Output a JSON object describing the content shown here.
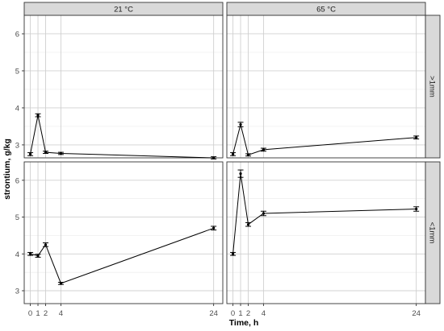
{
  "chart_data": {
    "type": "line",
    "xlabel": "Time, h",
    "ylabel": "strontium, g/kg",
    "x_ticks": [
      0,
      1,
      2,
      4,
      24
    ],
    "x_ticks_labeled": [
      0,
      1,
      2,
      4,
      24
    ],
    "y_ticks": [
      3,
      4,
      5,
      6
    ],
    "xlim": [
      -0.8,
      25.2
    ],
    "ylim": [
      2.65,
      6.5
    ],
    "grid": true,
    "columns": [
      "21 °C",
      "65 °C"
    ],
    "rows": [
      ">1mm",
      "<1mm"
    ],
    "panels": [
      {
        "column": "21 °C",
        "row": ">1mm",
        "points": [
          {
            "x": 0,
            "y": 2.75,
            "err": 0.04
          },
          {
            "x": 1,
            "y": 3.8,
            "err": 0.04
          },
          {
            "x": 2,
            "y": 2.8,
            "err": 0.03
          },
          {
            "x": 4,
            "y": 2.77,
            "err": 0.03
          },
          {
            "x": 24,
            "y": 2.65,
            "err": 0.03
          }
        ]
      },
      {
        "column": "65 °C",
        "row": ">1mm",
        "points": [
          {
            "x": 0,
            "y": 2.75,
            "err": 0.04
          },
          {
            "x": 1,
            "y": 3.55,
            "err": 0.06
          },
          {
            "x": 2,
            "y": 2.73,
            "err": 0.03
          },
          {
            "x": 4,
            "y": 2.87,
            "err": 0.04
          },
          {
            "x": 24,
            "y": 3.2,
            "err": 0.04
          }
        ]
      },
      {
        "column": "21 °C",
        "row": "<1mm",
        "points": [
          {
            "x": 0,
            "y": 4.0,
            "err": 0.04
          },
          {
            "x": 1,
            "y": 3.95,
            "err": 0.04
          },
          {
            "x": 2,
            "y": 4.25,
            "err": 0.05
          },
          {
            "x": 4,
            "y": 3.2,
            "err": 0.03
          },
          {
            "x": 24,
            "y": 4.7,
            "err": 0.05
          }
        ]
      },
      {
        "column": "65 °C",
        "row": "<1mm",
        "points": [
          {
            "x": 0,
            "y": 4.0,
            "err": 0.04
          },
          {
            "x": 1,
            "y": 6.18,
            "err": 0.1
          },
          {
            "x": 2,
            "y": 4.8,
            "err": 0.05
          },
          {
            "x": 4,
            "y": 5.1,
            "err": 0.06
          },
          {
            "x": 24,
            "y": 5.22,
            "err": 0.06
          }
        ]
      }
    ]
  },
  "colors": {
    "panel_border": "#333333",
    "strip_fill": "#d9d9d9",
    "grid_major": "#d0d0d0",
    "grid_minor": "#ebebeb",
    "series": "#000000"
  }
}
